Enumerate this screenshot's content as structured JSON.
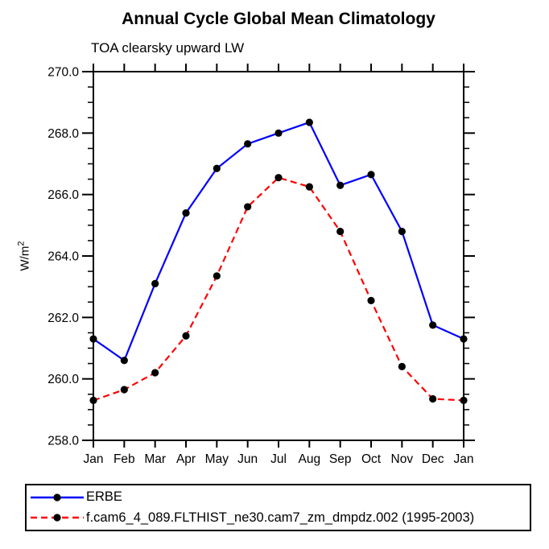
{
  "chart": {
    "title": "Annual Cycle Global Mean Climatology",
    "subtitle": "TOA clearsky upward LW",
    "ylabel_base": "W/m",
    "ylabel_exp": "2"
  },
  "chart_data": {
    "type": "line",
    "title": "Annual Cycle Global Mean Climatology",
    "subtitle": "TOA clearsky upward LW",
    "ylabel": "W/m^2",
    "xlabel": "",
    "categories": [
      "Jan",
      "Feb",
      "Mar",
      "Apr",
      "May",
      "Jun",
      "Jul",
      "Aug",
      "Sep",
      "Oct",
      "Nov",
      "Dec",
      "Jan"
    ],
    "series": [
      {
        "name": "ERBE",
        "color": "#0000ff",
        "line_style": "solid",
        "marker": "filled-circle",
        "marker_color": "#000000",
        "values": [
          261.3,
          260.6,
          263.1,
          265.4,
          266.85,
          267.65,
          268.0,
          268.35,
          266.3,
          266.65,
          264.8,
          261.75,
          261.3
        ]
      },
      {
        "name": "f.cam6_4_089.FLTHIST_ne30.cam7_zm_dmpdz.002 (1995-2003)",
        "color": "#ff0000",
        "line_style": "dashed",
        "marker": "filled-circle",
        "marker_color": "#000000",
        "values": [
          259.3,
          259.65,
          260.2,
          261.4,
          263.35,
          265.6,
          266.55,
          266.25,
          264.8,
          262.55,
          260.4,
          259.35,
          259.3
        ]
      }
    ],
    "ylim": [
      258.0,
      270.0
    ],
    "ytick_major_interval": 2.0,
    "ytick_minor_interval": 0.5,
    "ytick_labels": [
      "258.0",
      "260.0",
      "262.0",
      "264.0",
      "266.0",
      "268.0",
      "270.0"
    ],
    "grid": false,
    "frame": "box-with-outward-ticks",
    "legend_position": "bottom-left"
  }
}
